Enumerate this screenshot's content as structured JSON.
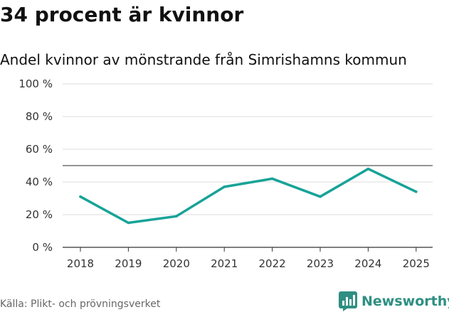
{
  "title": "34 procent är kvinnor",
  "subtitle": "Andel kvinnor av mönstrande från Simrishamns kommun",
  "source": "Källa: Plikt- och prövningsverket",
  "brand": "Newsworthy",
  "colors": {
    "line": "#17a398",
    "grid": "#dddddd",
    "reference": "#555555",
    "brand": "#2e8f82"
  },
  "icons": {
    "logo": "bar-chart-icon"
  },
  "chart_data": {
    "type": "line",
    "title": "34 procent är kvinnor",
    "subtitle": "Andel kvinnor av mönstrande från Simrishamns kommun",
    "x": [
      "2018",
      "2019",
      "2020",
      "2021",
      "2022",
      "2023",
      "2024",
      "2025"
    ],
    "series": [
      {
        "values": [
          31,
          15,
          19,
          37,
          42,
          31,
          48,
          34
        ]
      }
    ],
    "y_ticks": [
      0,
      20,
      40,
      60,
      80,
      100
    ],
    "y_tick_labels": [
      "0 %",
      "20 %",
      "40 %",
      "60 %",
      "80 %",
      "100 %"
    ],
    "ylim": [
      0,
      100
    ],
    "reference_line": 50,
    "grid": true,
    "xlabel": "",
    "ylabel": ""
  }
}
